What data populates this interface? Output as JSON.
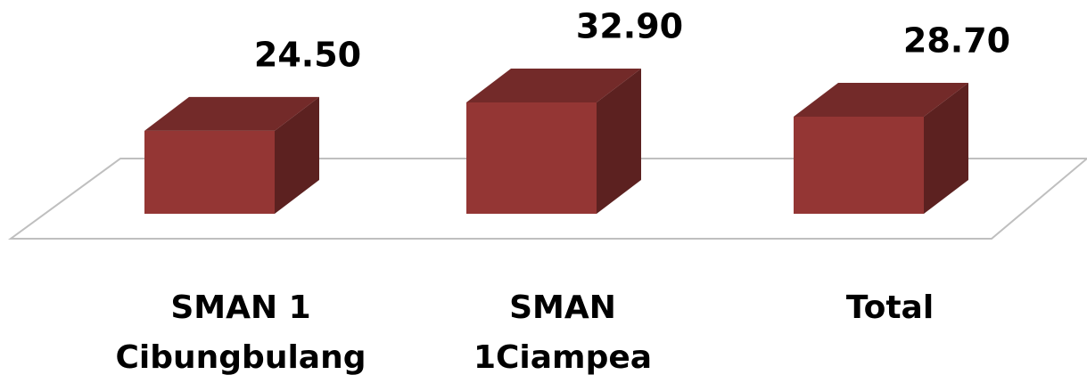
{
  "chart_data": {
    "type": "bar3d",
    "categories": [
      "SMAN 1 Cibungbulang",
      "SMAN 1Ciampea",
      "Total"
    ],
    "values": [
      24.5,
      32.9,
      28.7
    ],
    "value_labels": [
      "24.50",
      "32.90",
      "28.70"
    ],
    "color": "#943634"
  }
}
